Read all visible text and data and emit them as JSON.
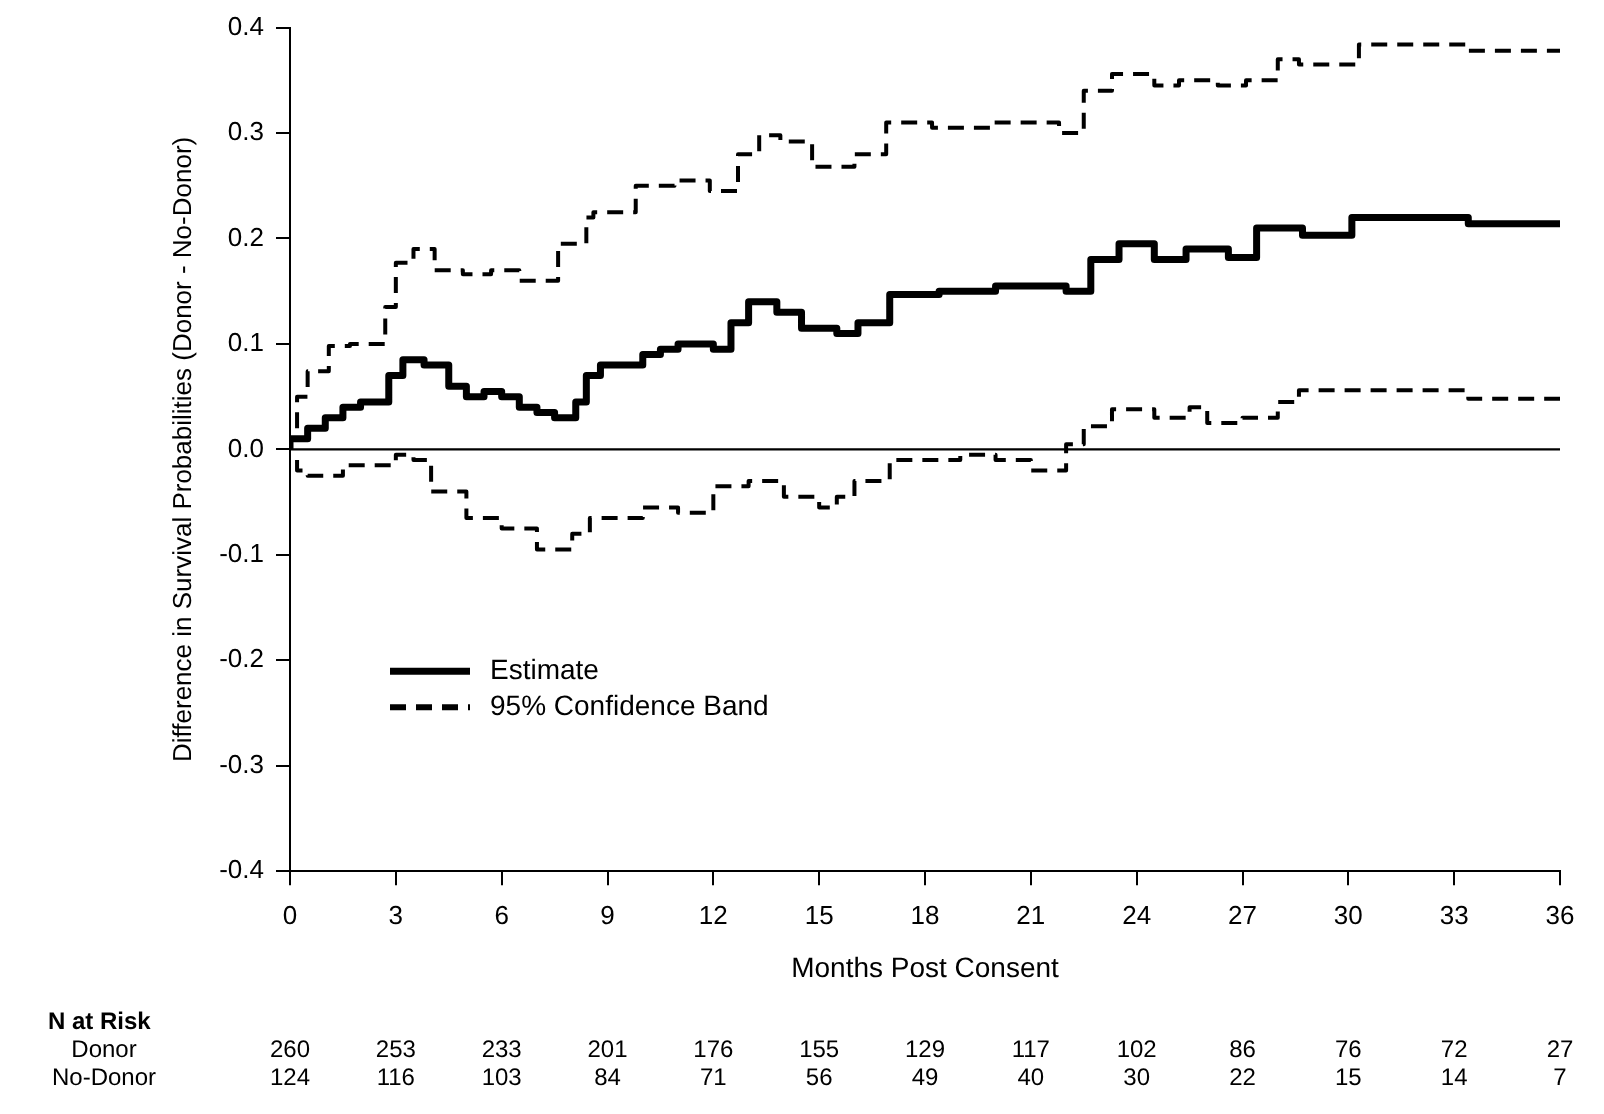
{
  "chart_data": {
    "type": "step",
    "xlabel": "Months Post Consent",
    "ylabel": "Difference in Survival Probabilities (Donor - No-Donor)",
    "xlim": [
      0,
      36
    ],
    "xticks": [
      0,
      3,
      6,
      9,
      12,
      15,
      18,
      21,
      24,
      27,
      30,
      33,
      36
    ],
    "ylim": [
      -0.4,
      0.4
    ],
    "yticks": [
      -0.4,
      -0.3,
      -0.2,
      -0.1,
      {
        "value": 0,
        "label": "0.0"
      },
      0.1,
      0.2,
      0.3,
      0.4
    ],
    "grid": false,
    "legend": "bottom left",
    "marker": "none",
    "ref_lines": [
      {
        "axis": "y",
        "value": 0,
        "color": "#000000",
        "line_style": "solid"
      }
    ],
    "annotations": [
      "N at Risk",
      "Donor",
      "260",
      "253",
      "233",
      "201",
      "176",
      "155",
      "129",
      "117",
      "102",
      "86",
      "76",
      "72",
      "27",
      "No-Donor",
      "124",
      "116",
      "103",
      "84",
      "71",
      "56",
      "49",
      "40",
      "30",
      "22",
      "15",
      "14",
      "7"
    ],
    "series": [
      {
        "name": "Estimate",
        "color": "#000000",
        "line_style": "solid",
        "x": [
          0,
          0.5,
          1,
          1.5,
          2,
          2.8,
          3.2,
          3.8,
          4.5,
          5,
          5.5,
          6,
          6.5,
          7,
          7.5,
          8.1,
          8.4,
          8.8,
          9.3,
          10,
          10.5,
          11,
          12,
          12.5,
          13,
          13.8,
          14.5,
          15.5,
          16.1,
          17,
          18.4,
          19,
          20,
          21,
          22,
          22.7,
          23.5,
          24.5,
          25.4,
          26.6,
          27.4,
          28.7,
          30.1,
          33.4,
          34.7,
          36
        ],
        "values": [
          0,
          0.01,
          0.02,
          0.03,
          0.04,
          0.045,
          0.07,
          0.085,
          0.08,
          0.06,
          0.05,
          0.055,
          0.05,
          0.04,
          0.035,
          0.03,
          0.045,
          0.07,
          0.08,
          0.08,
          0.09,
          0.095,
          0.1,
          0.095,
          0.12,
          0.14,
          0.13,
          0.115,
          0.11,
          0.12,
          0.147,
          0.15,
          0.15,
          0.155,
          0.155,
          0.15,
          0.18,
          0.195,
          0.18,
          0.19,
          0.182,
          0.21,
          0.203,
          0.22,
          0.214,
          0.214
        ]
      },
      {
        "name": "95% Confidence Band",
        "color": "#000000",
        "line_style": "dashed",
        "x": [
          0.2,
          0.5,
          1.1,
          1.7,
          2.7,
          3.0,
          3.5,
          4.1,
          4.9,
          5.7,
          6.5,
          7.6,
          8.4,
          8.6,
          9.8,
          10.9,
          11.9,
          12.7,
          13.3,
          13.9,
          14.8,
          16,
          16.9,
          18.2,
          19.9,
          21.8,
          22.5,
          23.3,
          24.5,
          25.2,
          26.3,
          27.1,
          28,
          28.6,
          30.3,
          33.4,
          34.8,
          36
        ],
        "values": [
          0.02,
          0.05,
          0.074,
          0.098,
          0.1,
          0.135,
          0.177,
          0.19,
          0.17,
          0.166,
          0.17,
          0.16,
          0.195,
          0.22,
          0.225,
          0.25,
          0.255,
          0.245,
          0.28,
          0.298,
          0.292,
          0.268,
          0.28,
          0.31,
          0.305,
          0.31,
          0.3,
          0.34,
          0.356,
          0.345,
          0.35,
          0.345,
          0.35,
          0.37,
          0.365,
          0.384,
          0.378,
          0.378
        ]
      },
      {
        "color": "#000000",
        "line_style": "dashed",
        "x": [
          0.2,
          0.5,
          1.5,
          3,
          3.5,
          4,
          5,
          6,
          7,
          8,
          8.5,
          9,
          10,
          11,
          12,
          13,
          14,
          15,
          15.5,
          16,
          17,
          18,
          19,
          20,
          21,
          22,
          22.5,
          23.3,
          24.5,
          25.5,
          26,
          27,
          28,
          28.6,
          33.4,
          34.7,
          36
        ],
        "values": [
          -0.01,
          -0.02,
          -0.025,
          -0.015,
          -0.005,
          -0.01,
          -0.04,
          -0.065,
          -0.075,
          -0.095,
          -0.08,
          -0.065,
          -0.065,
          -0.055,
          -0.06,
          -0.035,
          -0.03,
          -0.045,
          -0.055,
          -0.045,
          -0.03,
          -0.01,
          -0.01,
          -0.005,
          -0.01,
          -0.02,
          0.005,
          0.022,
          0.038,
          0.03,
          0.04,
          0.025,
          0.03,
          0.045,
          0.056,
          0.048,
          0.048
        ]
      }
    ]
  }
}
